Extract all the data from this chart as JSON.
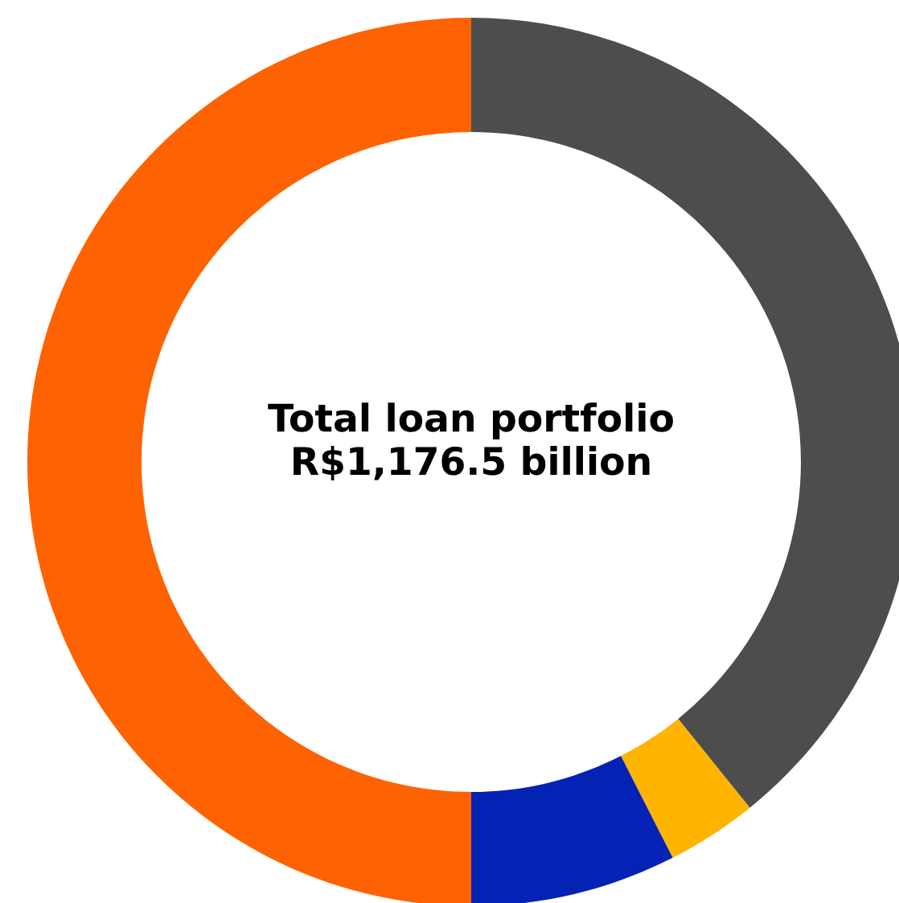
{
  "chart_data": {
    "type": "donut",
    "title": "Total loan portfolio",
    "subtitle": "R$1,176.5 billion",
    "categories": [
      null,
      null,
      null,
      null
    ],
    "values": [
      39.2,
      3.3,
      7.5,
      50.0
    ],
    "colors": [
      "#4d4d4d",
      "#ffb400",
      "#0423b4",
      "#ff6200"
    ],
    "legend": false
  }
}
